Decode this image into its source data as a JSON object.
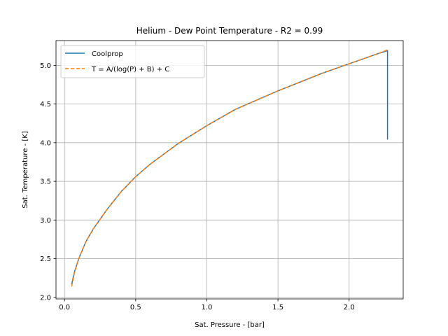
{
  "chart_data": {
    "type": "line",
    "title": "Helium - Dew Point Temperature - R2 = 0.99",
    "xlabel": "Sat. Pressure - [bar]",
    "ylabel": "Sat. Temperature - [K]",
    "xlim": [
      -0.06,
      2.38
    ],
    "ylim": [
      1.98,
      5.32
    ],
    "xticks": [
      0.0,
      0.5,
      1.0,
      1.5,
      2.0
    ],
    "xtick_labels": [
      "0.0",
      "0.5",
      "1.0",
      "1.5",
      "2.0"
    ],
    "yticks": [
      2.0,
      2.5,
      3.0,
      3.5,
      4.0,
      4.5,
      5.0
    ],
    "ytick_labels": [
      "2.0",
      "2.5",
      "3.0",
      "3.5",
      "4.0",
      "4.5",
      "5.0"
    ],
    "grid": true,
    "legend_position": "top-left",
    "series": [
      {
        "name": "Coolprop",
        "color": "#1f77b4",
        "style": "solid",
        "x": [
          0.05,
          0.07,
          0.1,
          0.15,
          0.2,
          0.3,
          0.4,
          0.5,
          0.6,
          0.8,
          1.0,
          1.2,
          1.5,
          1.8,
          2.0,
          2.2,
          2.27,
          2.27
        ],
        "y": [
          2.17,
          2.33,
          2.5,
          2.72,
          2.88,
          3.14,
          3.37,
          3.56,
          3.72,
          3.99,
          4.22,
          4.43,
          4.67,
          4.89,
          5.02,
          5.15,
          5.19,
          4.04
        ]
      },
      {
        "name": "T = A/(log(P) + B) + C",
        "color": "#ff7f0e",
        "style": "dashed",
        "x": [
          0.05,
          0.07,
          0.1,
          0.15,
          0.2,
          0.3,
          0.4,
          0.5,
          0.6,
          0.8,
          1.0,
          1.2,
          1.5,
          1.8,
          2.0,
          2.2,
          2.27
        ],
        "y": [
          2.14,
          2.32,
          2.5,
          2.72,
          2.88,
          3.14,
          3.37,
          3.56,
          3.72,
          3.99,
          4.22,
          4.43,
          4.67,
          4.89,
          5.02,
          5.15,
          5.2
        ]
      }
    ]
  }
}
